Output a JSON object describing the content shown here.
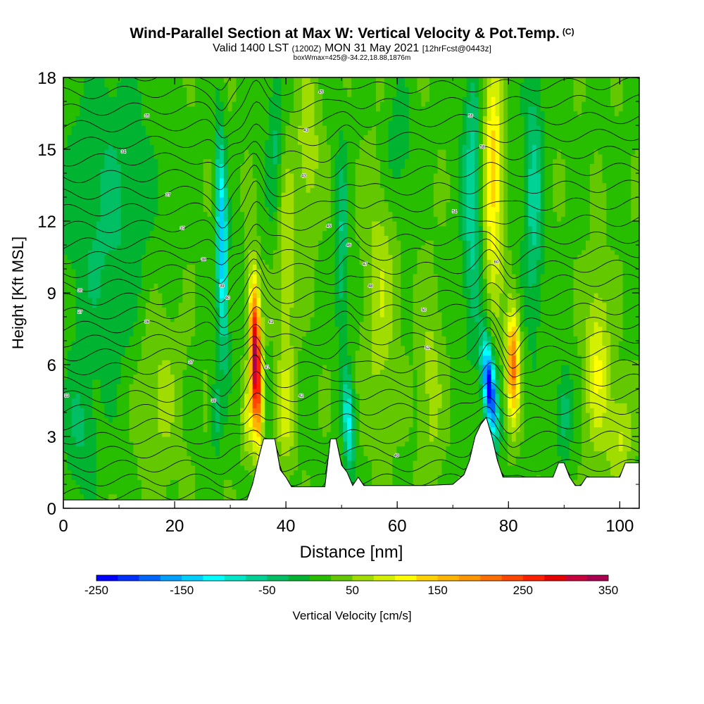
{
  "header": {
    "title": "Wind-Parallel Section at Max W: Vertical Velocity & Pot.Temp.",
    "copyright": "(C)",
    "valid_prefix": "Valid 1400 LST",
    "valid_zulu": "(1200Z)",
    "valid_date": "MON 31 May 2021",
    "forecast": "[12hrFcst@0443z]",
    "box_info": "boxWmax=425@-34.22,18.88,1876m"
  },
  "chart_data": {
    "type": "heatmap",
    "title": "Wind-Parallel Section at Max W: Vertical Velocity & Pot.Temp.",
    "xlabel": "Distance [nm]",
    "ylabel": "Height [Kft MSL]",
    "xlim": [
      0,
      103.5
    ],
    "ylim": [
      0,
      18
    ],
    "x_ticks": [
      "0",
      "20",
      "40",
      "60",
      "80",
      "100"
    ],
    "y_ticks": [
      "0",
      "3",
      "6",
      "9",
      "12",
      "15",
      "18"
    ],
    "colorbar": {
      "label": "Vertical Velocity [cm/s]",
      "range": [
        -250,
        350
      ],
      "tick_labels": [
        "-250",
        "-150",
        "-50",
        "50",
        "150",
        "250",
        "350"
      ],
      "colors": [
        "#0000ff",
        "#0030ff",
        "#0066ff",
        "#00a0ff",
        "#00d0ff",
        "#00ffff",
        "#00e6c8",
        "#00d296",
        "#00be64",
        "#00b432",
        "#28be00",
        "#64c800",
        "#a0dc00",
        "#d2f000",
        "#ffff00",
        "#ffd200",
        "#ffb400",
        "#ff9600",
        "#ff6e00",
        "#ff4600",
        "#ff2000",
        "#e60000",
        "#c8003c",
        "#aa0050"
      ]
    },
    "terrain_kft": [
      [
        0,
        0.35
      ],
      [
        33,
        0.35
      ],
      [
        34,
        1.0
      ],
      [
        35,
        2.0
      ],
      [
        36,
        2.9
      ],
      [
        38,
        2.9
      ],
      [
        39,
        1.6
      ],
      [
        40,
        1.3
      ],
      [
        41,
        0.9
      ],
      [
        47,
        0.9
      ],
      [
        48,
        2.9
      ],
      [
        49,
        2.9
      ],
      [
        50,
        1.8
      ],
      [
        51,
        1.5
      ],
      [
        52,
        0.95
      ],
      [
        53,
        1.3
      ],
      [
        54,
        0.95
      ],
      [
        64,
        0.95
      ],
      [
        65,
        0.95
      ],
      [
        70,
        1.0
      ],
      [
        72,
        1.4
      ],
      [
        73,
        2.0
      ],
      [
        74,
        3.0
      ],
      [
        75,
        3.5
      ],
      [
        76,
        3.8
      ],
      [
        77,
        3.0
      ],
      [
        78,
        2.0
      ],
      [
        79,
        1.3
      ],
      [
        80,
        1.3
      ],
      [
        82,
        1.3
      ],
      [
        88,
        1.3
      ],
      [
        89,
        1.9
      ],
      [
        90,
        1.9
      ],
      [
        91,
        1.3
      ],
      [
        92,
        0.95
      ],
      [
        93,
        0.95
      ],
      [
        94,
        1.3
      ],
      [
        100,
        1.3
      ],
      [
        101,
        1.9
      ],
      [
        103.5,
        1.9
      ]
    ],
    "updraft_max_cm_s": 350,
    "downdraft_min_cm_s": -250,
    "updraft_cores": [
      {
        "x_nm": 34.5,
        "z_kft": 6.5,
        "w_cm_s": 330
      },
      {
        "x_nm": 80.5,
        "z_kft": 6.0,
        "w_cm_s": 190
      },
      {
        "x_nm": 76.5,
        "z_kft": 5.0,
        "w_cm_s": -240
      }
    ],
    "theta_labels": [
      "27",
      "30",
      "33",
      "34",
      "35",
      "36",
      "37",
      "37",
      "37",
      "38",
      "38",
      "39",
      "40",
      "41",
      "41",
      "42",
      "43",
      "43",
      "45",
      "45",
      "46",
      "47",
      "48",
      "49",
      "50",
      "52",
      "54",
      "56",
      "58",
      "60"
    ]
  }
}
